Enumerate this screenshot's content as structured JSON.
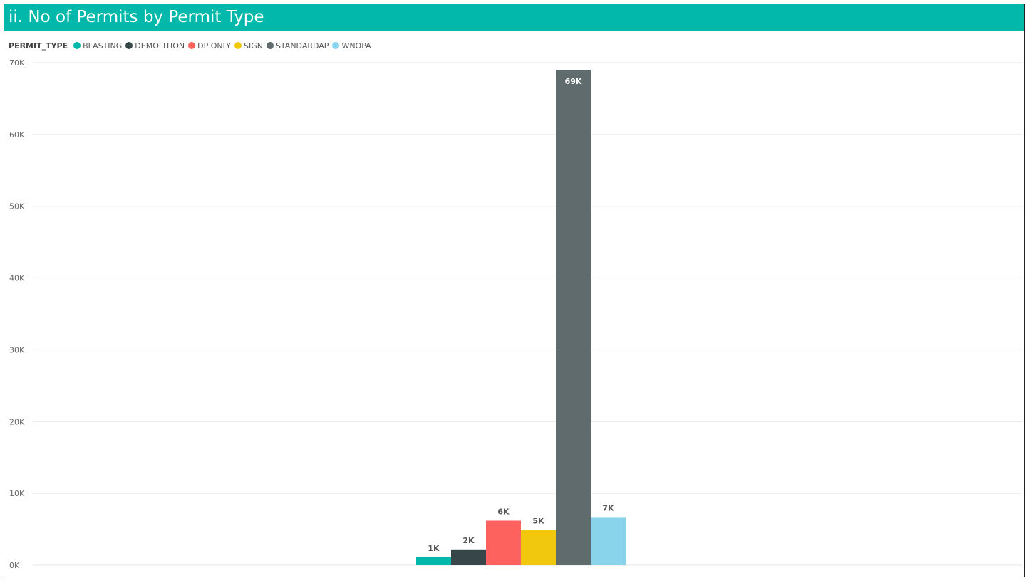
{
  "title": "ii. No of Permits by Permit Type",
  "legend": {
    "title": "PERMIT_TYPE",
    "items": [
      {
        "label": "BLASTING",
        "color": "#01b8aa"
      },
      {
        "label": "DEMOLITION",
        "color": "#374649"
      },
      {
        "label": "DP ONLY",
        "color": "#fd625e"
      },
      {
        "label": "SIGN",
        "color": "#f2c80f"
      },
      {
        "label": "STANDARDAP",
        "color": "#5f6b6d"
      },
      {
        "label": "WNOPA",
        "color": "#8ad4eb"
      }
    ]
  },
  "chart_data": {
    "type": "bar",
    "title": "ii. No of Permits by Permit Type",
    "legend_title": "PERMIT_TYPE",
    "legend_position": "top-left",
    "grid": true,
    "ylim": [
      0,
      70000
    ],
    "yticks": [
      {
        "value": 0,
        "label": "0K"
      },
      {
        "value": 10000,
        "label": "10K"
      },
      {
        "value": 20000,
        "label": "20K"
      },
      {
        "value": 30000,
        "label": "30K"
      },
      {
        "value": 40000,
        "label": "40K"
      },
      {
        "value": 50000,
        "label": "50K"
      },
      {
        "value": 60000,
        "label": "60K"
      },
      {
        "value": 70000,
        "label": "70K"
      }
    ],
    "series": [
      {
        "name": "BLASTING",
        "value": 1100,
        "data_label": "1K",
        "color": "#01b8aa"
      },
      {
        "name": "DEMOLITION",
        "value": 2200,
        "data_label": "2K",
        "color": "#374649"
      },
      {
        "name": "DP ONLY",
        "value": 6200,
        "data_label": "6K",
        "color": "#fd625e"
      },
      {
        "name": "SIGN",
        "value": 4900,
        "data_label": "5K",
        "color": "#f2c80f"
      },
      {
        "name": "STANDARDAP",
        "value": 69000,
        "data_label": "69K",
        "color": "#5f6b6d"
      },
      {
        "name": "WNOPA",
        "value": 6700,
        "data_label": "7K",
        "color": "#8ad4eb"
      }
    ]
  }
}
